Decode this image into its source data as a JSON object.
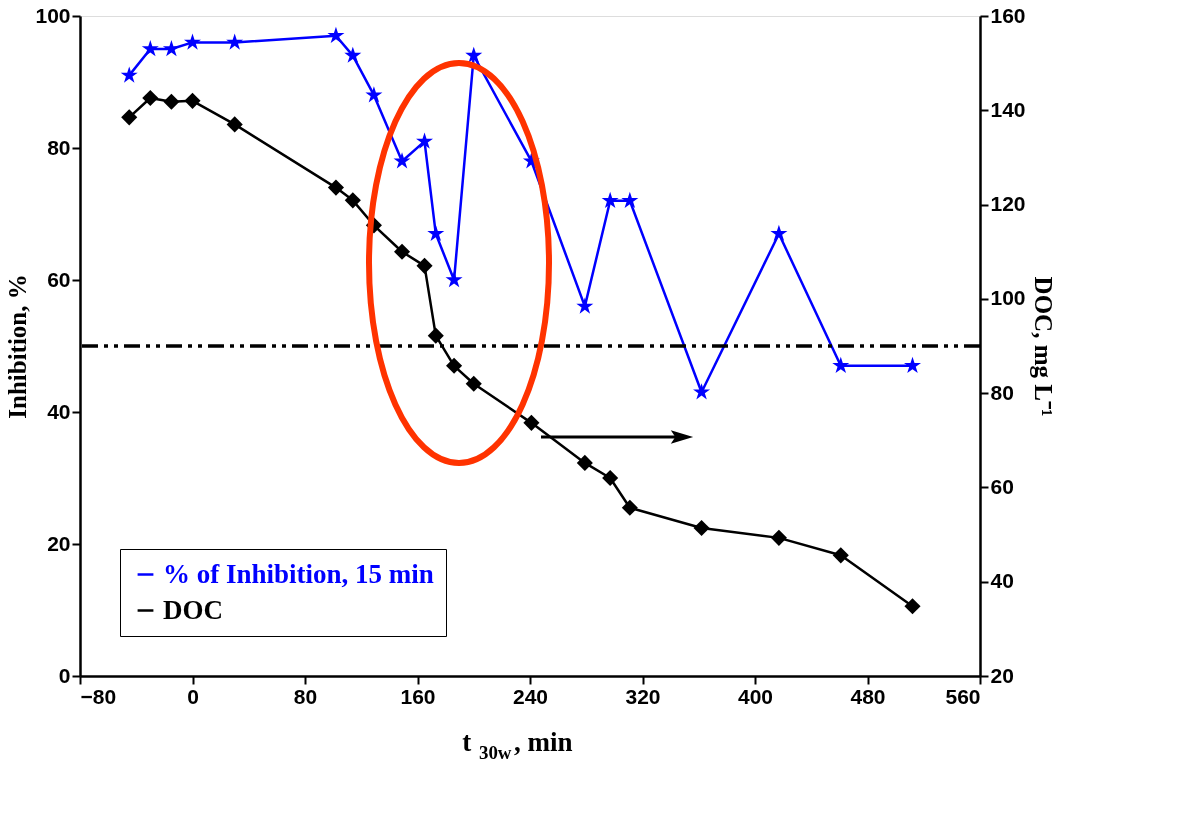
{
  "chart_data": {
    "type": "line",
    "xlabel": "t$_{30w}$, min",
    "ylabel": "Inhibition, %",
    "y2label": "DOC, mg L⁻¹",
    "x": [
      -45,
      -30,
      -15,
      0,
      30,
      102,
      114,
      129,
      149,
      165,
      173,
      186,
      200,
      241,
      279,
      297,
      311,
      362,
      417,
      461,
      512
    ],
    "series": [
      {
        "name": "% of Inhibition, 15 min",
        "color": "#0000ff",
        "marker": "star",
        "values": [
          91,
          95,
          95,
          96,
          96,
          97,
          94,
          88,
          78,
          81,
          67,
          60,
          94,
          78,
          56,
          72,
          72,
          43,
          67,
          47,
          47
        ]
      },
      {
        "name": "DOC",
        "color": "#000000",
        "marker": "diamond",
        "axis": "y2",
        "values": [
          138.5,
          142.6,
          141.8,
          142,
          137,
          123.6,
          120.9,
          115.6,
          110,
          107,
          92.2,
          85.8,
          82,
          73.7,
          65.2,
          62,
          55.7,
          51.4,
          49.3,
          45.6,
          34.8
        ]
      }
    ],
    "xlim": [
      -80,
      560
    ],
    "xticks": [
      -80,
      0,
      80,
      160,
      240,
      320,
      400,
      480,
      560
    ],
    "ylim": [
      0,
      100
    ],
    "yticks": [
      0,
      20,
      40,
      60,
      80,
      100
    ],
    "y2lim": [
      20,
      160
    ],
    "y2ticks": [
      20,
      40,
      60,
      80,
      100,
      120,
      140,
      160
    ],
    "ref_lines": [
      {
        "axis": "y",
        "value": 50,
        "color": "#000000",
        "line_style": "dashed"
      }
    ],
    "grid": false,
    "legend": "bottom left",
    "line_style": "solid"
  }
}
